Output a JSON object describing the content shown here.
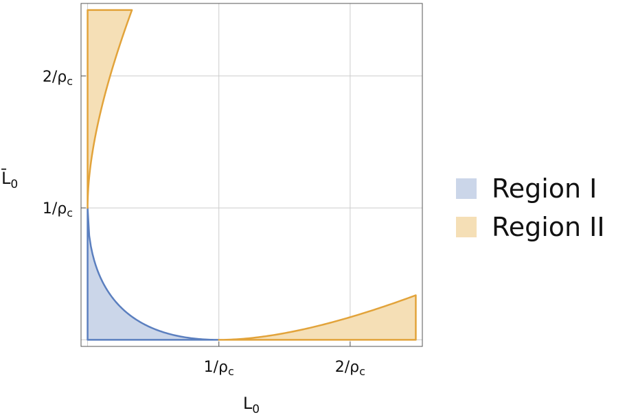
{
  "chart_data": {
    "type": "area",
    "xlabel": "L0",
    "ylabel": "L̄0",
    "xlim": [
      -0.05,
      2.55
    ],
    "ylim": [
      -0.05,
      2.55
    ],
    "grid": true,
    "legend_placement": "right",
    "x_ticks": [
      {
        "value": 1,
        "label": "1/ρ",
        "sub": "c"
      },
      {
        "value": 2,
        "label": "2/ρ",
        "sub": "c"
      }
    ],
    "y_ticks": [
      {
        "value": 1,
        "label": "1/ρ",
        "sub": "c"
      },
      {
        "value": 2,
        "label": "2/ρ",
        "sub": "c"
      }
    ],
    "series": [
      {
        "name": "Region I",
        "fill": "#cbd6e9",
        "stroke": "#5b7fbf",
        "regions": [
          {
            "boundary": "y = (1 - sqrt(x))^2",
            "x_range": [
              0,
              1
            ]
          }
        ]
      },
      {
        "name": "Region II",
        "fill": "#f5dfb6",
        "stroke": "#e2a33a",
        "regions": [
          {
            "boundary": "x = (sqrt(y) - 1)^2",
            "y_range": [
              1,
              2.5
            ]
          },
          {
            "boundary": "y = (sqrt(x) - 1)^2",
            "x_range": [
              1,
              2.5
            ]
          }
        ]
      }
    ]
  }
}
